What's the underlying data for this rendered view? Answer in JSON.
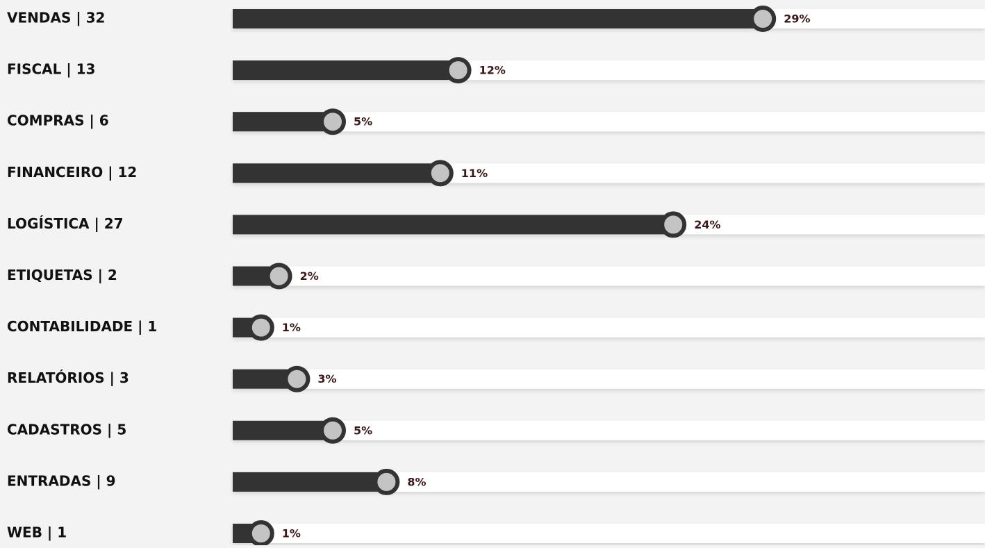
{
  "chart_data": {
    "type": "bar",
    "categories": [
      "VENDAS | 32",
      "FISCAL | 13",
      "COMPRAS | 6",
      "FINANCEIRO | 12",
      "LOGÍSTICA | 27",
      "ETIQUETAS | 2",
      "CONTABILIDADE | 1",
      "RELATÓRIOS | 3",
      "CADASTROS | 5",
      "ENTRADAS | 9",
      "WEB | 1"
    ],
    "values": [
      29,
      12,
      5,
      11,
      24,
      2,
      1,
      3,
      5,
      8,
      1
    ],
    "value_labels": [
      "29%",
      "12%",
      "5%",
      "11%",
      "24%",
      "2%",
      "1%",
      "3%",
      "5%",
      "8%",
      "1%"
    ],
    "color": "#333333"
  }
}
